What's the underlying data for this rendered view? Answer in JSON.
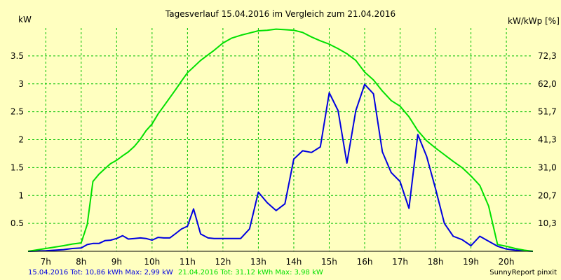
{
  "chart_data": {
    "type": "line",
    "title": "Tagesverlauf 15.04.2016 im Vergleich zum 21.04.2016",
    "ylabel_left": "kW",
    "ylabel_right": "kW/kWp [%]",
    "x_tick_labels": [
      "7h",
      "8h",
      "9h",
      "10h",
      "11h",
      "12h",
      "13h",
      "14h",
      "15h",
      "16h",
      "17h",
      "18h",
      "19h",
      "20h"
    ],
    "x_tick_hours": [
      7,
      8,
      9,
      10,
      11,
      12,
      13,
      14,
      15,
      16,
      17,
      18,
      19,
      20
    ],
    "xlim": [
      6.5,
      20.75
    ],
    "ylim": [
      0,
      4.0
    ],
    "y_ticks": [
      0.5,
      1,
      1.5,
      2,
      2.5,
      3,
      3.5
    ],
    "y_tick_labels": [
      "0.5",
      "1",
      "1.5",
      "2",
      "2.5",
      "3",
      "3.5"
    ],
    "y2_ticks": [
      0.5,
      1,
      1.5,
      2,
      2.5,
      3,
      3.5
    ],
    "y2_tick_labels": [
      "10,3",
      "20,7",
      "31,0",
      "41,3",
      "51,7",
      "62,0",
      "72,3"
    ],
    "grid": true,
    "background": "#ffffc0",
    "grid_color": "#00c000",
    "series": [
      {
        "name": "15.04.2016",
        "color": "#0000e0",
        "x": [
          6.5,
          7.0,
          7.5,
          7.75,
          8.0,
          8.17,
          8.33,
          8.5,
          8.67,
          8.83,
          9.0,
          9.17,
          9.33,
          9.5,
          9.67,
          9.83,
          10.0,
          10.17,
          10.33,
          10.5,
          10.67,
          10.83,
          11.0,
          11.17,
          11.37,
          11.58,
          11.75,
          12.0,
          12.25,
          12.5,
          12.75,
          13.0,
          13.25,
          13.5,
          13.75,
          14.0,
          14.25,
          14.5,
          14.75,
          15.0,
          15.25,
          15.5,
          15.75,
          16.0,
          16.25,
          16.5,
          16.75,
          17.0,
          17.25,
          17.5,
          17.75,
          18.0,
          18.25,
          18.5,
          18.75,
          19.0,
          19.25,
          19.5,
          19.75,
          20.0,
          20.25,
          20.5,
          20.75
        ],
        "y": [
          0,
          0.01,
          0.03,
          0.05,
          0.06,
          0.12,
          0.14,
          0.14,
          0.19,
          0.2,
          0.23,
          0.28,
          0.22,
          0.23,
          0.24,
          0.23,
          0.2,
          0.25,
          0.24,
          0.24,
          0.32,
          0.4,
          0.45,
          0.76,
          0.31,
          0.24,
          0.23,
          0.23,
          0.23,
          0.23,
          0.4,
          1.06,
          0.87,
          0.73,
          0.85,
          1.65,
          1.8,
          1.77,
          1.87,
          2.84,
          2.52,
          1.58,
          2.52,
          2.99,
          2.82,
          1.78,
          1.41,
          1.25,
          0.77,
          2.09,
          1.7,
          1.12,
          0.5,
          0.27,
          0.21,
          0.1,
          0.27,
          0.18,
          0.09,
          0.04,
          0.02,
          0.01,
          0
        ]
      },
      {
        "name": "21.04.2016",
        "color": "#00e000",
        "x": [
          6.5,
          7.0,
          7.5,
          7.75,
          8.0,
          8.17,
          8.33,
          8.5,
          8.67,
          8.83,
          9.0,
          9.17,
          9.33,
          9.5,
          9.67,
          9.83,
          10.0,
          10.17,
          10.33,
          10.5,
          10.67,
          10.83,
          11.0,
          11.17,
          11.37,
          11.58,
          11.75,
          12.0,
          12.25,
          12.5,
          12.75,
          13.0,
          13.25,
          13.5,
          13.75,
          14.0,
          14.25,
          14.5,
          14.75,
          15.0,
          15.25,
          15.5,
          15.75,
          16.0,
          16.25,
          16.5,
          16.75,
          17.0,
          17.25,
          17.5,
          17.75,
          18.0,
          18.25,
          18.5,
          18.75,
          19.0,
          19.25,
          19.5,
          19.75,
          20.0,
          20.25,
          20.5,
          20.75
        ],
        "y": [
          0,
          0.05,
          0.1,
          0.13,
          0.15,
          0.48,
          1.25,
          1.38,
          1.48,
          1.57,
          1.63,
          1.71,
          1.78,
          1.88,
          2.01,
          2.16,
          2.28,
          2.46,
          2.6,
          2.75,
          2.9,
          3.05,
          3.2,
          3.3,
          3.42,
          3.52,
          3.6,
          3.73,
          3.82,
          3.87,
          3.91,
          3.95,
          3.96,
          3.98,
          3.97,
          3.96,
          3.92,
          3.84,
          3.77,
          3.71,
          3.63,
          3.54,
          3.42,
          3.21,
          3.07,
          2.87,
          2.7,
          2.6,
          2.41,
          2.16,
          1.98,
          1.85,
          1.73,
          1.61,
          1.5,
          1.35,
          1.18,
          0.81,
          0.12,
          0.09,
          0.05,
          0.02,
          0
        ]
      }
    ]
  },
  "footer": {
    "date1_summary": "15.04.2016 Tot: 10,86 kWh Max: 2,99 kW",
    "date2_summary": "21.04.2016 Tot: 31,12 kWh Max: 3,98 kW",
    "credit": "SunnyReport pinxit"
  }
}
